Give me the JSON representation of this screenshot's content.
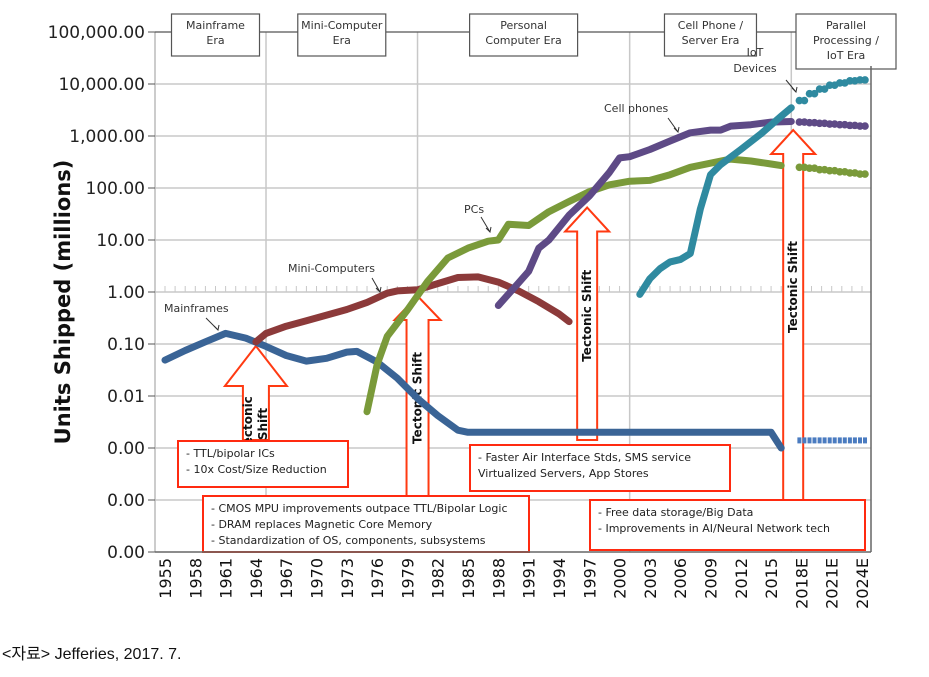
{
  "chart_data": {
    "type": "line",
    "title": "",
    "xlabel": "",
    "ylabel": "Units Shipped (millions)",
    "yscale": "log",
    "ylim": [
      1e-05,
      100000
    ],
    "xlim": [
      1955,
      2024
    ],
    "grid": true,
    "y_tick_labels": [
      "100,000.00",
      "10,000.00",
      "1,000.00",
      "100.00",
      "10.00",
      "1.00",
      "0.10",
      "0.01",
      "0.00",
      "0.00",
      "0.00"
    ],
    "y_tick_values": [
      100000,
      10000,
      1000,
      100,
      10,
      1,
      0.1,
      0.01,
      0.001,
      0.0001,
      1e-05
    ],
    "x_tick_labels": [
      "1955",
      "1958",
      "1961",
      "1964",
      "1967",
      "1970",
      "1973",
      "1976",
      "1979",
      "1982",
      "1985",
      "1988",
      "1991",
      "1994",
      "1997",
      "2000",
      "2003",
      "2006",
      "2009",
      "2012",
      "2015",
      "2018E",
      "2021E",
      "2024E"
    ],
    "x_tick_values": [
      1955,
      1958,
      1961,
      1964,
      1967,
      1970,
      1973,
      1976,
      1979,
      1982,
      1985,
      1988,
      1991,
      1994,
      1997,
      2000,
      2003,
      2006,
      2009,
      2012,
      2015,
      2018,
      2021,
      2024
    ],
    "series": [
      {
        "name": "Mainframes",
        "color": "#3a6496",
        "x": [
          1955,
          1957,
          1959,
          1961,
          1963,
          1965,
          1967,
          1969,
          1971,
          1973,
          1974,
          1976,
          1978,
          1980,
          1982,
          1984,
          1985,
          1990,
          2000,
          2010,
          2015,
          2016
        ],
        "values": [
          0.049,
          0.075,
          0.11,
          0.16,
          0.13,
          0.09,
          0.06,
          0.047,
          0.053,
          0.07,
          0.072,
          0.045,
          0.022,
          0.009,
          0.0042,
          0.0022,
          0.002,
          0.002,
          0.002,
          0.002,
          0.002,
          0.001
        ],
        "projection": {
          "x": [
            2018,
            2019,
            2020,
            2021,
            2022,
            2023,
            2024
          ],
          "values": [
            0.0014,
            0.0014,
            0.0014,
            0.0014,
            0.0014,
            0.0014,
            0.0014
          ]
        }
      },
      {
        "name": "Mini-Computers",
        "color": "#8c3a3a",
        "x": [
          1964,
          1965,
          1967,
          1969,
          1971,
          1973,
          1975,
          1977,
          1978,
          1980,
          1982,
          1984,
          1986,
          1988,
          1990,
          1992,
          1994,
          1995
        ],
        "values": [
          0.11,
          0.16,
          0.22,
          0.28,
          0.36,
          0.46,
          0.63,
          0.95,
          1.05,
          1.1,
          1.45,
          1.9,
          1.95,
          1.55,
          1.05,
          0.65,
          0.38,
          0.27
        ]
      },
      {
        "name": "PCs",
        "color": "#7a9a3a",
        "x": [
          1975,
          1976,
          1977,
          1979,
          1981,
          1983,
          1985,
          1987,
          1988,
          1989,
          1991,
          1993,
          1995,
          1997,
          1999,
          2001,
          2003,
          2005,
          2007,
          2009,
          2011,
          2013,
          2015,
          2016
        ],
        "values": [
          0.005,
          0.04,
          0.14,
          0.45,
          1.6,
          4.5,
          7,
          9.5,
          10,
          20,
          19,
          35,
          55,
          85,
          115,
          135,
          140,
          180,
          250,
          300,
          360,
          330,
          290,
          270
        ],
        "projection": {
          "x": [
            2018,
            2019,
            2020,
            2021,
            2022,
            2023,
            2024
          ],
          "values": [
            250,
            240,
            225,
            215,
            205,
            195,
            185
          ]
        }
      },
      {
        "name": "Cell phones",
        "color": "#5e4a86",
        "x": [
          1988,
          1990,
          1991,
          1992,
          1993,
          1995,
          1997,
          1999,
          2000,
          2001,
          2003,
          2005,
          2007,
          2009,
          2010,
          2011,
          2013,
          2015,
          2017
        ],
        "values": [
          0.55,
          1.5,
          2.5,
          7,
          10,
          30,
          70,
          200,
          380,
          400,
          550,
          800,
          1150,
          1300,
          1300,
          1550,
          1650,
          1850,
          1900
        ],
        "projection": {
          "x": [
            2018,
            2019,
            2020,
            2021,
            2022,
            2023,
            2024
          ],
          "values": [
            1850,
            1800,
            1750,
            1700,
            1650,
            1600,
            1550
          ]
        }
      },
      {
        "name": "IoT Devices",
        "color": "#2f8aa0",
        "x": [
          2002,
          2003,
          2004,
          2005,
          2006,
          2007,
          2008,
          2009,
          2010,
          2012,
          2014,
          2016,
          2017
        ],
        "values": [
          0.9,
          1.8,
          2.8,
          3.8,
          4.2,
          5.5,
          40,
          180,
          280,
          550,
          1100,
          2400,
          3500
        ],
        "projection": {
          "x": [
            2018,
            2019,
            2020,
            2021,
            2022,
            2023,
            2024
          ],
          "values": [
            4800,
            6500,
            8000,
            9500,
            10500,
            11500,
            12000
          ]
        }
      }
    ],
    "series_labels": [
      {
        "text": "Mainframes",
        "series": "Mainframes"
      },
      {
        "text": "Mini-Computers",
        "series": "Mini-Computers"
      },
      {
        "text": "PCs",
        "series": "PCs"
      },
      {
        "text": "Cell phones",
        "series": "Cell phones"
      },
      {
        "text": "IoT Devices",
        "series": "IoT Devices"
      }
    ],
    "eras": [
      {
        "label_lines": [
          "Mainframe",
          "Era"
        ]
      },
      {
        "label_lines": [
          "Mini-Computer",
          "Era"
        ]
      },
      {
        "label_lines": [
          "Personal",
          "Computer Era"
        ]
      },
      {
        "label_lines": [
          "Cell Phone /",
          "Server Era"
        ]
      },
      {
        "label_lines": [
          "Parallel",
          "Processing /",
          "IoT Era"
        ]
      }
    ],
    "era_boundaries": [
      1965,
      1980,
      2001,
      2017
    ],
    "tectonic_shifts": [
      {
        "year": 1964,
        "label_lines": [
          "Tectonic",
          "Shift"
        ],
        "notes": [
          "- TTL/bipolar ICs",
          "- 10x Cost/Size Reduction"
        ]
      },
      {
        "year": 1980,
        "label_lines": [
          "Tectonic Shift"
        ],
        "notes": [
          "- CMOS MPU improvements outpace TTL/Bipolar Logic",
          "- DRAM replaces Magnetic Core Memory",
          "- Standardization of OS, components, subsystems"
        ]
      },
      {
        "year": 1996,
        "label_lines": [
          "Tectonic Shift"
        ],
        "notes": [
          "- Faster Air Interface Stds, SMS service",
          "  Virtualized Servers, App Stores"
        ]
      },
      {
        "year": 2016,
        "label_lines": [
          "Tectonic Shift"
        ],
        "notes": [
          "- Free data storage/Big Data",
          "- Improvements in AI/Neural Network tech"
        ]
      }
    ],
    "arrow_color": "#ff3a12",
    "note_border_color": "#ff2a10"
  },
  "source": "<자료> Jefferies, 2017. 7."
}
